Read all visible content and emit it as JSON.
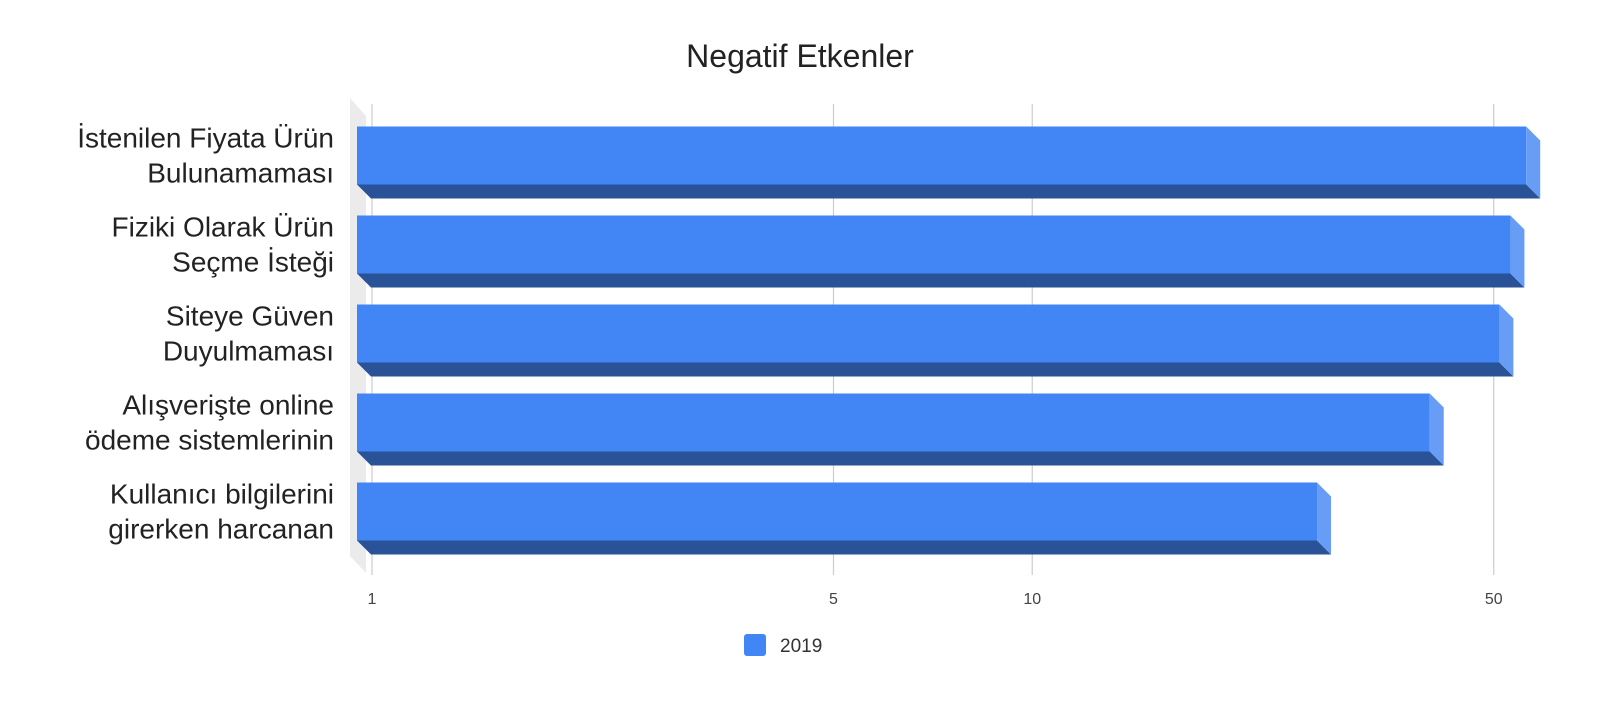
{
  "chart_data": {
    "type": "bar",
    "orientation": "horizontal",
    "title": "Negatif Etkenler",
    "xscale": "log",
    "xlim": [
      1,
      60
    ],
    "xticks": [
      1,
      5,
      10,
      50
    ],
    "grid": true,
    "categories": [
      [
        "İstenilen Fiyata Ürün",
        "Bulunamaması"
      ],
      [
        "Fiziki Olarak Ürün",
        "Seçme İsteği"
      ],
      [
        "Siteye Güven",
        "Duyulmaması"
      ],
      [
        "Alışverişte online",
        "ödeme sistemlerinin"
      ],
      [
        "Kullanıcı bilgilerini",
        "girerken harcanan"
      ]
    ],
    "series": [
      {
        "name": "2019",
        "color": "#4285f4",
        "values": [
          56,
          53,
          51,
          40,
          27
        ]
      }
    ],
    "legend_position": "bottom"
  }
}
